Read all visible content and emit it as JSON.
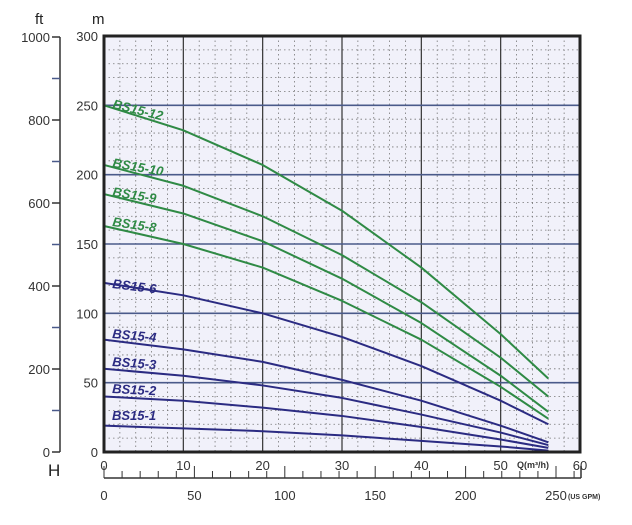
{
  "chart_data": {
    "type": "line",
    "title": "",
    "xlabel": "Q(m³/h)",
    "ylabel": "H",
    "y_unit_m": "m",
    "y_unit_ft": "ft",
    "x2label": "(US GPM)",
    "xlim": [
      0,
      60
    ],
    "ylim": [
      0,
      300
    ],
    "ylim_ft": [
      0,
      1000
    ],
    "x_ticks": [
      "0",
      "10",
      "20",
      "30",
      "40",
      "50",
      "60"
    ],
    "y_ticks": [
      "0",
      "50",
      "100",
      "150",
      "200",
      "250",
      "300"
    ],
    "ft_ticks": [
      "0",
      "200",
      "400",
      "600",
      "800",
      "1000"
    ],
    "gpm_ticks": [
      "0",
      "50",
      "100",
      "150",
      "200",
      "250"
    ],
    "grid": true,
    "x": [
      0,
      10,
      20,
      30,
      40,
      50,
      56
    ],
    "series": [
      {
        "name": "BS15-12",
        "color": "#2f8a45",
        "values": [
          250,
          232,
          207,
          174,
          133,
          85,
          53
        ]
      },
      {
        "name": "BS15-10",
        "color": "#2f8a45",
        "values": [
          207,
          192,
          170,
          142,
          108,
          68,
          40
        ]
      },
      {
        "name": "BS15-9",
        "color": "#2f8a45",
        "values": [
          186,
          172,
          152,
          125,
          93,
          55,
          29
        ]
      },
      {
        "name": "BS15-8",
        "color": "#2f8a45",
        "values": [
          163,
          150,
          133,
          109,
          81,
          47,
          24
        ]
      },
      {
        "name": "BS15-6",
        "color": "#2b2b82",
        "values": [
          122,
          113,
          100,
          83,
          62,
          37,
          20
        ]
      },
      {
        "name": "BS15-4",
        "color": "#2b2b82",
        "values": [
          81,
          74,
          65,
          52,
          37,
          19,
          7
        ]
      },
      {
        "name": "BS15-3",
        "color": "#2b2b82",
        "values": [
          60,
          55,
          48,
          39,
          27,
          14,
          5
        ]
      },
      {
        "name": "BS15-2",
        "color": "#2b2b82",
        "values": [
          40,
          37,
          32,
          26,
          18,
          9,
          3
        ]
      },
      {
        "name": "BS15-1",
        "color": "#2b2b82",
        "values": [
          19,
          17,
          15,
          12,
          8,
          4,
          1
        ]
      }
    ]
  }
}
